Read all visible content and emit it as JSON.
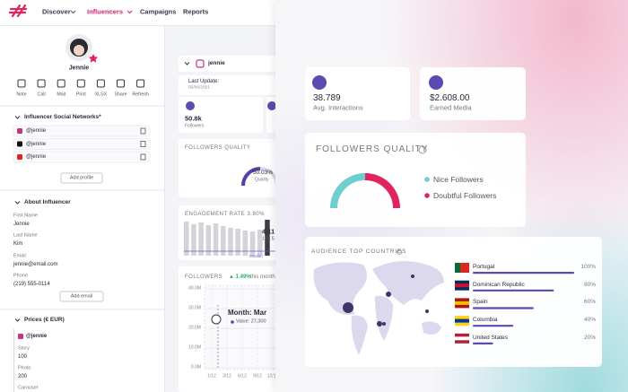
{
  "nav": {
    "items": [
      "Discover",
      "Influencers",
      "Campaigns",
      "Reports"
    ],
    "active": 1
  },
  "profile": {
    "name": "Jennie",
    "actions": [
      "Note",
      "Call",
      "Mail",
      "Print",
      "XLSX",
      "Share",
      "Refresh"
    ]
  },
  "social": {
    "title": "Influencer Social Networks*",
    "accounts": [
      "@jennie",
      "@jennie",
      "@jennie"
    ],
    "button": "Add profile"
  },
  "about": {
    "title": "About Influencer",
    "fields": [
      {
        "label": "First Name",
        "value": "Jennie"
      },
      {
        "label": "Last Name",
        "value": "Kim"
      },
      {
        "label": "Email",
        "value": "jennie@email.com"
      },
      {
        "label": "Phone",
        "value": "(219) 555-0114"
      }
    ],
    "button": "Add email"
  },
  "prices": {
    "title": "Prices (€ EUR)",
    "account": "@jennie",
    "items": [
      {
        "label": "Story",
        "value": "100"
      },
      {
        "label": "Photo",
        "value": "200"
      },
      {
        "label": "Carousel"
      }
    ]
  },
  "middle": {
    "handle": "jennie",
    "last_update_label": "Last Update:",
    "last_update": "05/06/2021",
    "followers": "50.8k",
    "followers_label": "Followers",
    "quality_title": "FOLLOWERS QUALITY",
    "quality": {
      "value": 50.03,
      "label": "50.03%"
    },
    "quality_label": "Quality",
    "engagement_title": "ENGAGEMENT RATE 3.80%",
    "engagement_value": "4.11",
    "engagement_sub": "155.5",
    "engagement_median": "Median",
    "engagement_bars": [
      38,
      35,
      37,
      34,
      36,
      33,
      31,
      30,
      28,
      27,
      29,
      40
    ],
    "followers_title": "FOLLOWERS",
    "followers_change": "▲ 1.49%",
    "followers_change_label": "this month",
    "chart": {
      "ylim": [
        0,
        40
      ],
      "yticks": [
        {
          "value": 40,
          "label": "40.0M"
        },
        {
          "value": 30,
          "label": "30.0M"
        },
        {
          "value": 20,
          "label": "20.0M"
        },
        {
          "value": 10,
          "label": "10.0M"
        },
        {
          "value": 0,
          "label": "0.0M"
        }
      ],
      "xticks": [
        "1/12",
        "3/12",
        "6/12",
        "9/12",
        "12/12"
      ],
      "tooltip_title": "Month: Mar",
      "tooltip_value": "Value: 27,300"
    }
  },
  "overlay": {
    "interactions": "38.789",
    "interactions_label": "Avg. Interactions",
    "earned": "$2.608.00",
    "earned_label": "Earned Media",
    "quality_title": "FOLLOWERS QUALITY",
    "legend": [
      {
        "name": "Nice Followers",
        "color": "#6fcfd0"
      },
      {
        "name": "Doubtful Followers",
        "color": "#e0245e"
      }
    ],
    "countries": {
      "title": "AUDIENCE TOP COUNTRIES",
      "items": [
        {
          "name": "Portugal",
          "value": 100,
          "label": "100%"
        },
        {
          "name": "Dominican Republic",
          "value": 80,
          "label": "80%"
        },
        {
          "name": "Spain",
          "value": 60,
          "label": "60%"
        },
        {
          "name": "Colombia",
          "value": 40,
          "label": "40%"
        },
        {
          "name": "United States",
          "value": 20,
          "label": "20%"
        }
      ]
    }
  }
}
